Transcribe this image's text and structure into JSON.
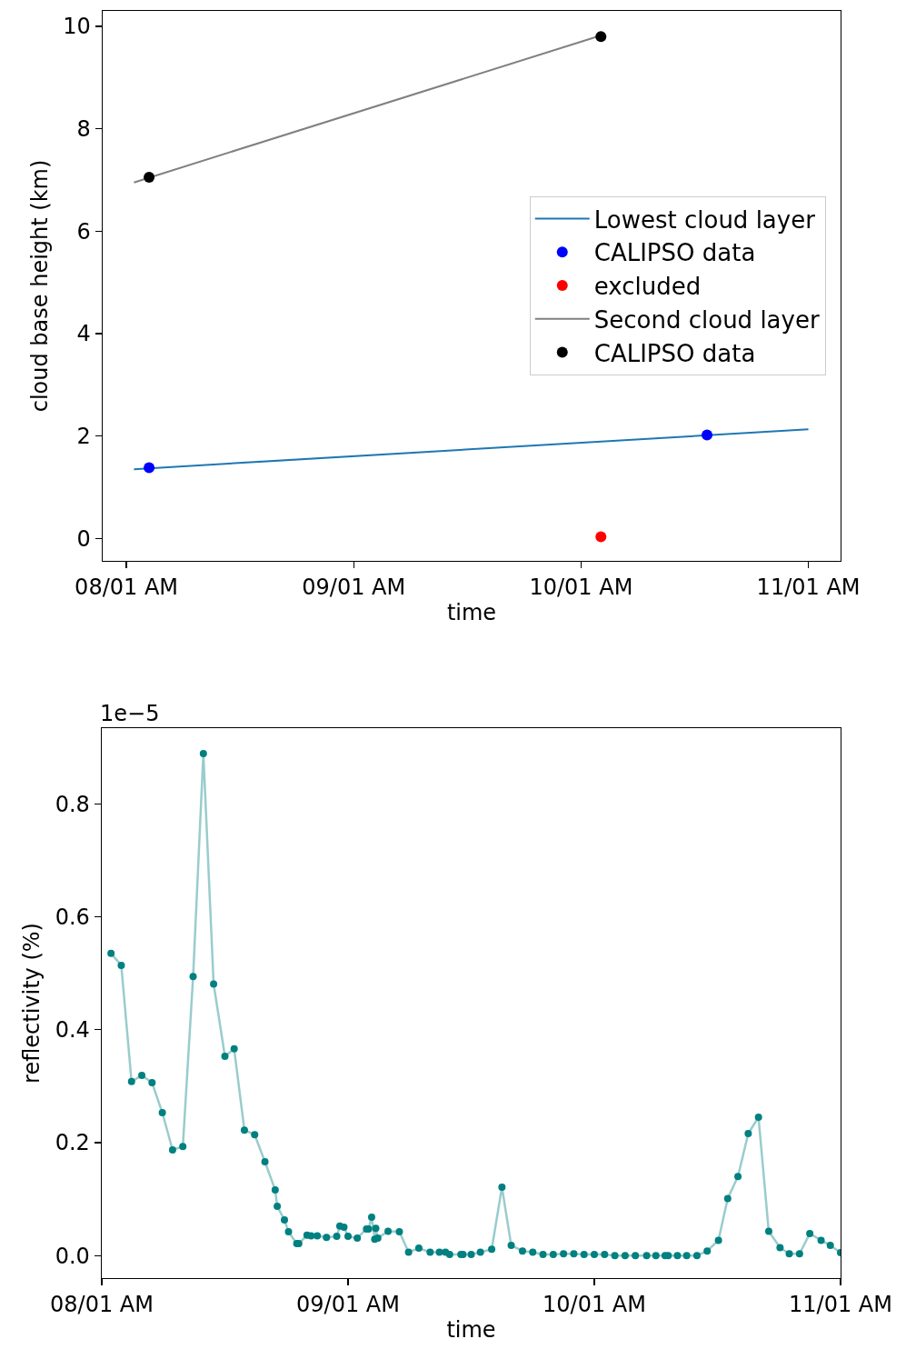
{
  "chart_data": [
    {
      "type": "line",
      "xlabel": "time",
      "ylabel": "cloud base height (km)",
      "xlim": [
        "--01-07T21:30",
        "--01-11T03:24"
      ],
      "xticks": [
        {
          "value": "--01-08T00:00",
          "label": "08/01 AM"
        },
        {
          "value": "--01-09T00:00",
          "label": "09/01 AM"
        },
        {
          "value": "--01-10T00:00",
          "label": "10/01 AM"
        },
        {
          "value": "--01-11T00:00",
          "label": "11/01 AM"
        }
      ],
      "ylim": [
        -0.44,
        10.3
      ],
      "yticks": [
        0,
        2,
        4,
        6,
        8,
        10
      ],
      "grid": false,
      "legend": "right",
      "marker": "circle",
      "series": [
        {
          "name": "Lowest cloud layer",
          "type": "line",
          "marker": "none",
          "color": "#1f77b4",
          "x": [
            "--01-08T00:48",
            "--01-11T00:00"
          ],
          "values": [
            1.35,
            2.13
          ]
        },
        {
          "name": "CALIPSO data",
          "type": "scatter",
          "color": "#0000ff",
          "x": [
            "--01-08T02:24",
            "--01-10T13:18"
          ],
          "values": [
            1.38,
            2.02
          ]
        },
        {
          "name": "excluded",
          "type": "scatter",
          "color": "#ff0000",
          "x": [
            "--01-10T02:06"
          ],
          "values": [
            0.03
          ]
        },
        {
          "name": "Second cloud layer",
          "type": "line",
          "marker": "none",
          "color": "#808080",
          "x": [
            "--01-08T00:48",
            "--01-10T02:06"
          ],
          "values": [
            6.95,
            9.82
          ]
        },
        {
          "name": "CALIPSO data",
          "type": "scatter",
          "color": "#000000",
          "x": [
            "--01-08T02:24",
            "--01-10T02:06"
          ],
          "values": [
            7.05,
            9.8
          ]
        }
      ]
    },
    {
      "type": "line",
      "xlabel": "time",
      "ylabel": "reflectivity (%)",
      "annotations": [
        "1e−5"
      ],
      "xlim": [
        "--01-08T00:00",
        "--01-11T00:00"
      ],
      "xticks": [
        {
          "value": "--01-08T00:00",
          "label": "08/01 AM"
        },
        {
          "value": "--01-09T00:00",
          "label": "09/01 AM"
        },
        {
          "value": "--01-10T00:00",
          "label": "10/01 AM"
        },
        {
          "value": "--01-11T00:00",
          "label": "11/01 AM"
        }
      ],
      "ylim": [
        -0.04,
        0.934
      ],
      "yticks": [
        {
          "value": 0,
          "label": "0.0"
        },
        0.2,
        0.4,
        0.6,
        0.8
      ],
      "grid": false,
      "legend": false,
      "marker": "circle",
      "series": [
        {
          "color": "#008080",
          "x": [
            "--01-08T00:54",
            "--01-08T01:54",
            "--01-08T02:54",
            "--01-08T03:54",
            "--01-08T04:54",
            "--01-08T05:54",
            "--01-08T06:54",
            "--01-08T07:54",
            "--01-08T08:54",
            "--01-08T09:54",
            "--01-08T10:54",
            "--01-08T12:00",
            "--01-08T12:54",
            "--01-08T13:54",
            "--01-08T14:54",
            "--01-08T15:54",
            "--01-08T16:54",
            "--01-08T17:06",
            "--01-08T17:48",
            "--01-08T18:12",
            "--01-08T19:00",
            "--01-08T19:12",
            "--01-08T20:00",
            "--01-08T20:24",
            "--01-08T21:00",
            "--01-08T21:54",
            "--01-08T22:54",
            "--01-08T23:12",
            "--01-08T23:36",
            "--01-09T00:00",
            "--01-09T00:54",
            "--01-09T01:48",
            "--01-09T02:00",
            "--01-09T02:18",
            "--01-09T02:36",
            "--01-09T02:42",
            "--01-09T02:54",
            "--01-09T03:54",
            "--01-09T05:00",
            "--01-09T05:54",
            "--01-09T06:54",
            "--01-09T08:00",
            "--01-09T08:54",
            "--01-09T09:30",
            "--01-09T09:54",
            "--01-09T11:00",
            "--01-09T11:12",
            "--01-09T12:00",
            "--01-09T12:54",
            "--01-09T14:00",
            "--01-09T15:00",
            "--01-09T15:54",
            "--01-09T17:00",
            "--01-09T18:00",
            "--01-09T19:00",
            "--01-09T20:00",
            "--01-09T21:00",
            "--01-09T22:00",
            "--01-09T23:00",
            "--01-10T00:00",
            "--01-10T01:00",
            "--01-10T02:00",
            "--01-10T03:00",
            "--01-10T04:00",
            "--01-10T05:06",
            "--01-10T06:00",
            "--01-10T06:54",
            "--01-10T07:12",
            "--01-10T08:06",
            "--01-10T09:00",
            "--01-10T10:00",
            "--01-10T11:00",
            "--01-10T12:06",
            "--01-10T13:00",
            "--01-10T14:00",
            "--01-10T15:00",
            "--01-10T16:00",
            "--01-10T17:00",
            "--01-10T18:06",
            "--01-10T19:00",
            "--01-10T20:00",
            "--01-10T21:00",
            "--01-10T22:06",
            "--01-10T23:00",
            "--01-11T00:00"
          ],
          "values": [
            0.535,
            0.514,
            0.308,
            0.319,
            0.306,
            0.253,
            0.187,
            0.193,
            0.494,
            0.889,
            0.481,
            0.353,
            0.366,
            0.222,
            0.214,
            0.166,
            0.116,
            0.087,
            0.063,
            0.042,
            0.021,
            0.021,
            0.036,
            0.035,
            0.035,
            0.032,
            0.034,
            0.052,
            0.05,
            0.034,
            0.031,
            0.047,
            0.047,
            0.068,
            0.029,
            0.048,
            0.031,
            0.043,
            0.042,
            0.006,
            0.013,
            0.006,
            0.006,
            0.006,
            0.002,
            0.002,
            0.002,
            0.002,
            0.006,
            0.011,
            0.121,
            0.018,
            0.008,
            0.006,
            0.002,
            0.002,
            0.003,
            0.003,
            0.002,
            0.002,
            0.002,
            0.0,
            0.0,
            0.0,
            0.0,
            0.0,
            0.0,
            0.0,
            0.0,
            0.0,
            0.0,
            0.008,
            0.027,
            0.101,
            0.14,
            0.216,
            0.245,
            0.043,
            0.014,
            0.003,
            0.003,
            0.039,
            0.027,
            0.018,
            0.005
          ]
        }
      ]
    }
  ]
}
